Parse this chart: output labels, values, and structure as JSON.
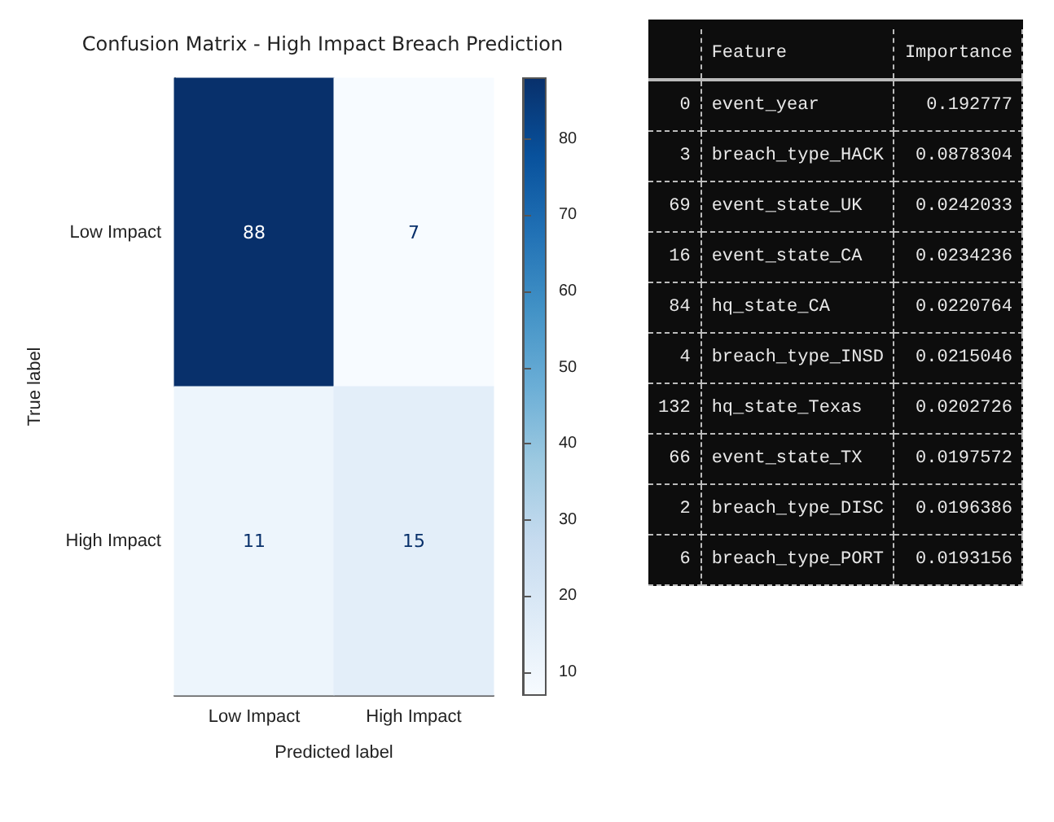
{
  "chart_data": [
    {
      "type": "heatmap",
      "title": "Confusion Matrix - High Impact Breach Prediction",
      "xlabel": "Predicted label",
      "ylabel": "True label",
      "categories": [
        "Low Impact",
        "High Impact"
      ],
      "y_categories": [
        "Low Impact",
        "High Impact"
      ],
      "cells": [
        [
          88,
          7
        ],
        [
          11,
          15
        ]
      ],
      "clim": [
        7,
        88
      ],
      "cticks": [
        10,
        20,
        30,
        40,
        50,
        60,
        70,
        80
      ],
      "data_labels": true
    },
    {
      "type": "other",
      "categories": [
        null,
        "Feature",
        "Importance"
      ],
      "cell_labels": [
        [
          "0",
          "event_year",
          "0.192777"
        ],
        [
          "3",
          "breach_type_HACK",
          "0.0878304"
        ],
        [
          "69",
          "event_state_UK",
          "0.0242033"
        ],
        [
          "16",
          "event_state_CA",
          "0.0234236"
        ],
        [
          "84",
          "hq_state_CA",
          "0.0220764"
        ],
        [
          "4",
          "breach_type_INSD",
          "0.0215046"
        ],
        [
          "132",
          "hq_state_Texas",
          "0.0202726"
        ],
        [
          "66",
          "event_state_TX",
          "0.0197572"
        ],
        [
          "2",
          "breach_type_DISC",
          "0.0196386"
        ],
        [
          "6",
          "breach_type_PORT",
          "0.0193156"
        ]
      ]
    }
  ]
}
